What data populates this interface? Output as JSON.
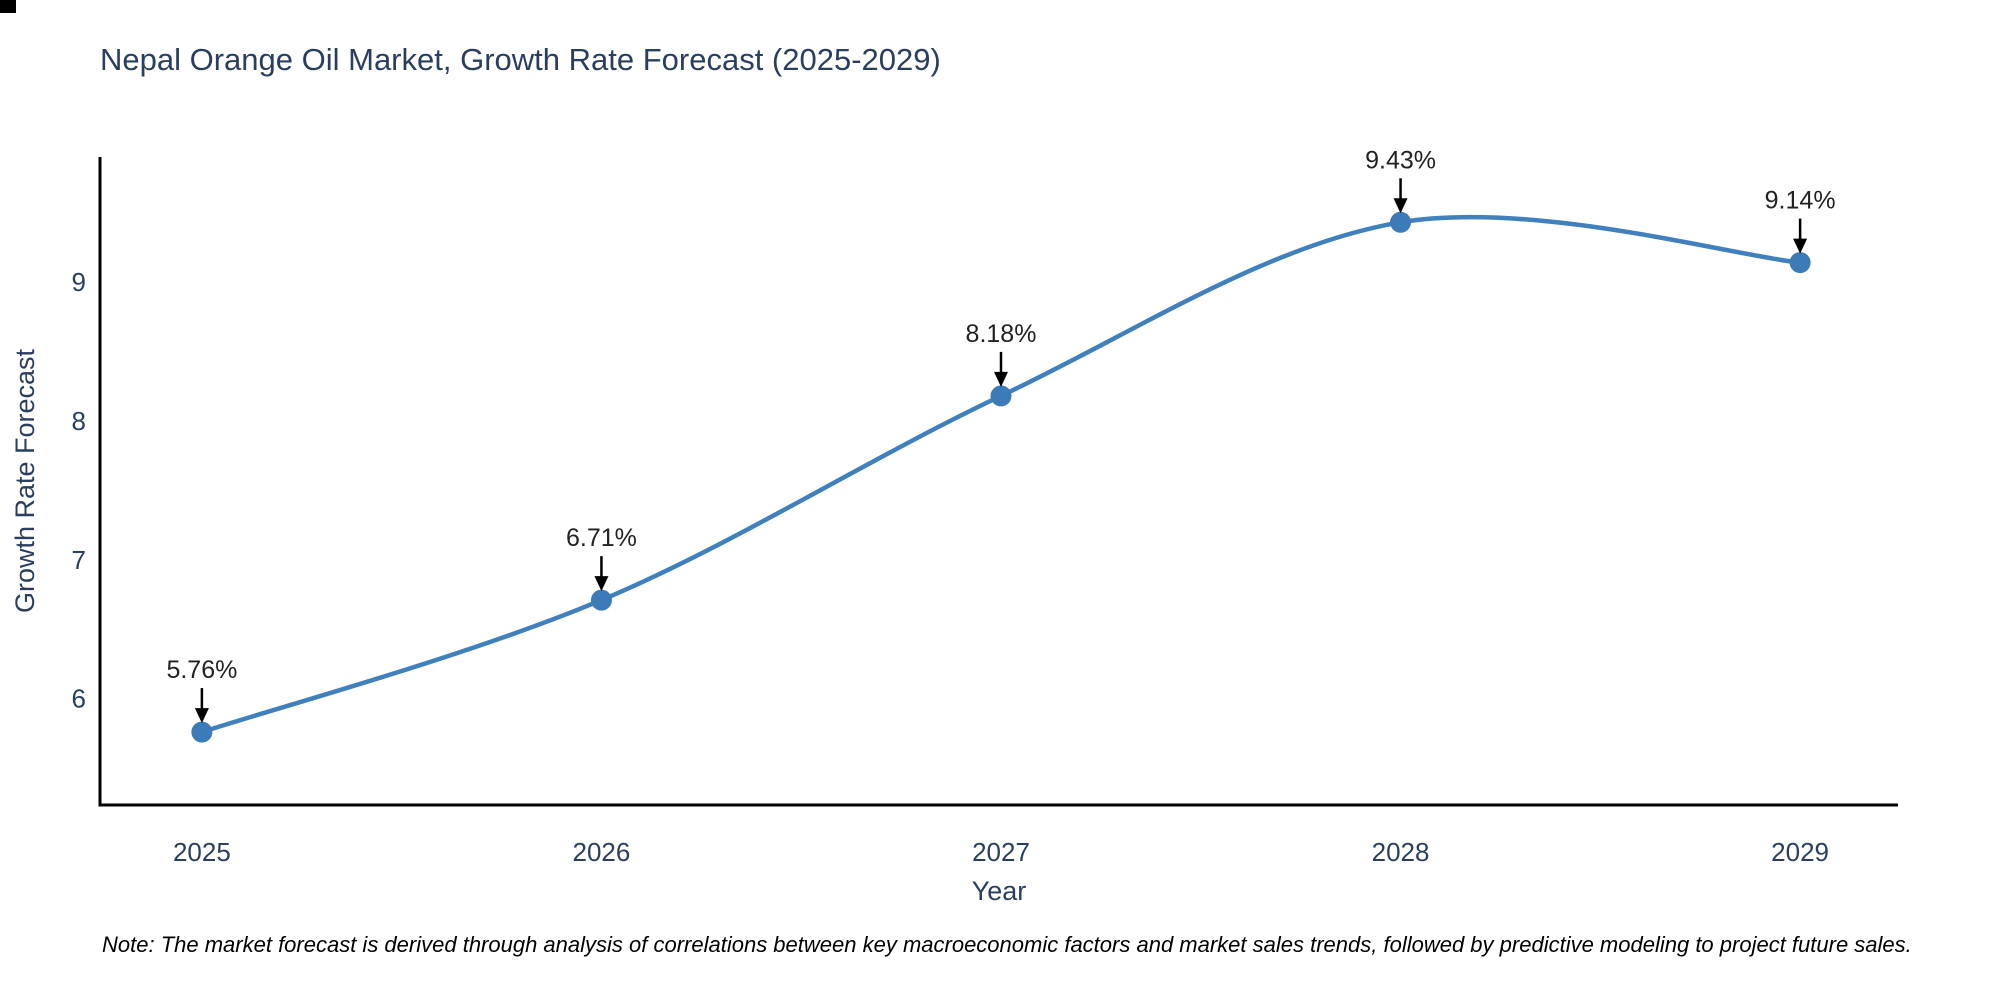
{
  "page": {
    "title": "Nepal Orange Oil Market, Growth Rate Forecast (2025-2029)",
    "note": "Note: The market forecast is derived through analysis of correlations between key macroeconomic factors and market sales trends, followed by predictive modeling to project future sales."
  },
  "chart_data": {
    "type": "line",
    "title": "Nepal Orange Oil Market, Growth Rate Forecast (2025-2029)",
    "x": [
      2025,
      2026,
      2027,
      2028,
      2029
    ],
    "x_tick_labels": [
      "2025",
      "2026",
      "2027",
      "2028",
      "2029"
    ],
    "series": [
      {
        "name": "Growth Rate Forecast",
        "values": [
          5.76,
          6.71,
          8.18,
          9.43,
          9.14
        ]
      }
    ],
    "point_labels": [
      "5.76%",
      "6.71%",
      "8.18%",
      "9.43%",
      "9.14%"
    ],
    "xlabel": "Year",
    "ylabel": "Growth Rate Forecast",
    "y_ticks": [
      6,
      7,
      8,
      9
    ],
    "xlim": [
      2024.745,
      2029.245
    ],
    "ylim": [
      5.235,
      9.9
    ],
    "grid": false,
    "legend_position": "none",
    "line_shape": "spline",
    "annotation_arrows": true,
    "colors": {
      "line": "#4080bc",
      "marker": "#3d7ab8",
      "axis": "#000000",
      "arrow": "#000000",
      "title_text": "#2a3f5f",
      "tick_text": "#2a3f5f",
      "annotation_text": "#222222",
      "note_text": "#000000",
      "background": "#ffffff"
    }
  }
}
